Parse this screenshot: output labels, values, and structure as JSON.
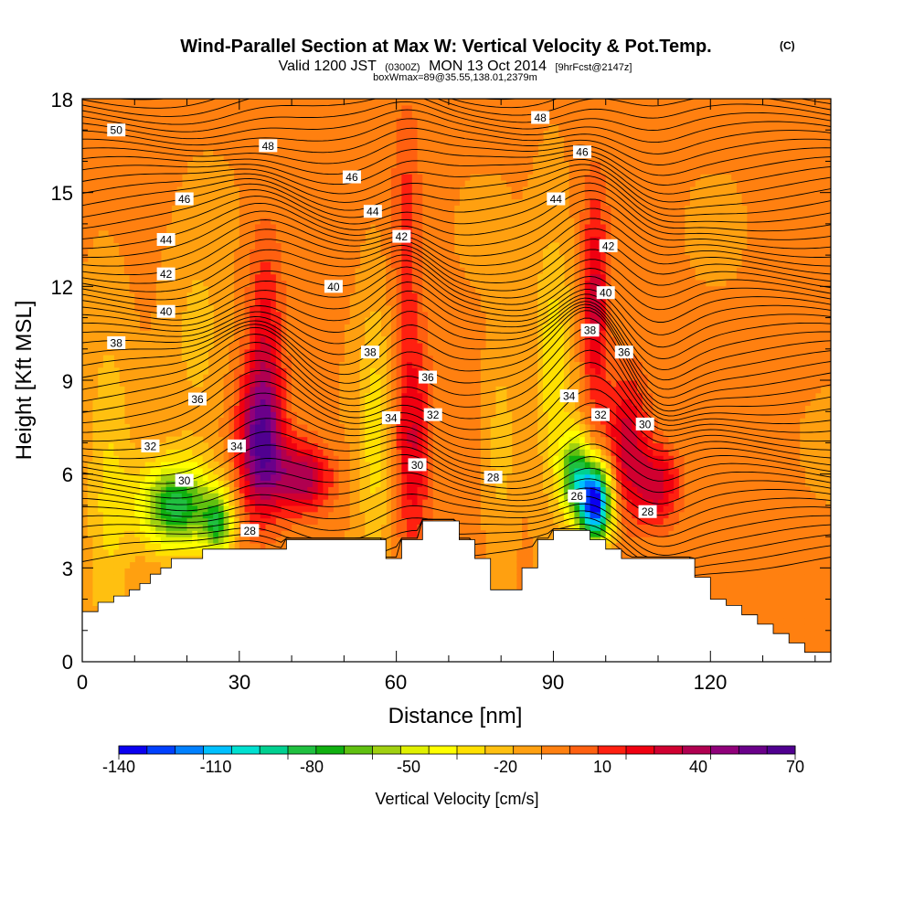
{
  "chart_data": {
    "type": "heatmap",
    "title": "Wind-Parallel Section at Max W: Vertical Velocity & Pot.Temp.",
    "title_tag": "(C)",
    "subtitle_main": "Valid 1200 JST",
    "subtitle_zulu": "(0300Z)",
    "subtitle_date": "MON 13 Oct 2014",
    "subtitle_forecast": "[9hrFcst@2147z]",
    "subtitle_line2": "boxWmax=89@35.55,138.01,2379m",
    "xlabel": "Distance [nm]",
    "ylabel": "Height [Kft MSL]",
    "xlim": [
      0,
      143
    ],
    "ylim": [
      0,
      18
    ],
    "x_ticks": [
      "0",
      "30",
      "60",
      "90",
      "120"
    ],
    "y_ticks": [
      "0",
      "3",
      "6",
      "9",
      "12",
      "15",
      "18"
    ],
    "colorbar": {
      "title": "Vertical Velocity [cm/s]",
      "tick_labels": [
        "-140",
        "-110",
        "-80",
        "-50",
        "-20",
        "10",
        "40",
        "70"
      ],
      "colors": [
        "#0a00f0",
        "#0040ff",
        "#0080ff",
        "#00c0ff",
        "#00e0d0",
        "#00d090",
        "#20c040",
        "#10b010",
        "#60c010",
        "#a0d010",
        "#e0f000",
        "#ffff00",
        "#ffe000",
        "#ffc010",
        "#ffa010",
        "#ff8010",
        "#ff6010",
        "#ff2010",
        "#f00010",
        "#d00030",
        "#b00050",
        "#90007a",
        "#6a008a",
        "#500090"
      ]
    },
    "terrain_kft": [
      [
        0,
        1.6
      ],
      [
        3,
        1.6
      ],
      [
        3,
        1.9
      ],
      [
        6,
        1.9
      ],
      [
        6,
        2.1
      ],
      [
        9,
        2.1
      ],
      [
        9,
        2.3
      ],
      [
        11,
        2.3
      ],
      [
        11,
        2.5
      ],
      [
        13,
        2.5
      ],
      [
        13,
        2.8
      ],
      [
        15,
        2.8
      ],
      [
        15,
        3.0
      ],
      [
        17,
        3.0
      ],
      [
        17,
        3.3
      ],
      [
        23,
        3.3
      ],
      [
        23,
        3.6
      ],
      [
        39,
        3.6
      ],
      [
        39,
        3.9
      ],
      [
        58,
        3.9
      ],
      [
        58,
        3.3
      ],
      [
        61,
        3.3
      ],
      [
        61,
        3.9
      ],
      [
        65,
        3.9
      ],
      [
        65,
        4.5
      ],
      [
        72,
        4.5
      ],
      [
        72,
        3.9
      ],
      [
        75,
        3.9
      ],
      [
        75,
        3.3
      ],
      [
        78,
        3.3
      ],
      [
        78,
        2.3
      ],
      [
        84,
        2.3
      ],
      [
        84,
        3.0
      ],
      [
        87,
        3.0
      ],
      [
        87,
        3.9
      ],
      [
        90,
        3.9
      ],
      [
        90,
        4.2
      ],
      [
        97,
        4.2
      ],
      [
        97,
        3.9
      ],
      [
        100,
        3.9
      ],
      [
        100,
        3.6
      ],
      [
        103,
        3.6
      ],
      [
        103,
        3.3
      ],
      [
        117,
        3.3
      ],
      [
        117,
        2.7
      ],
      [
        120,
        2.7
      ],
      [
        120,
        2.0
      ],
      [
        123,
        2.0
      ],
      [
        123,
        1.8
      ],
      [
        126,
        1.8
      ],
      [
        126,
        1.5
      ],
      [
        129,
        1.5
      ],
      [
        129,
        1.2
      ],
      [
        132,
        1.2
      ],
      [
        132,
        0.9
      ],
      [
        135,
        0.9
      ],
      [
        135,
        0.6
      ],
      [
        138,
        0.6
      ],
      [
        138,
        0.3
      ],
      [
        143,
        0.3
      ]
    ],
    "vertical_velocity_features": [
      {
        "x": 34,
        "z": 7.0,
        "sx": 3.0,
        "sz": 1.6,
        "value": 70
      },
      {
        "x": 35,
        "z": 10.5,
        "sx": 2.5,
        "sz": 2.5,
        "value": 32
      },
      {
        "x": 42,
        "z": 5.9,
        "sx": 4.0,
        "sz": 0.8,
        "value": 55
      },
      {
        "x": 63,
        "z": 7.0,
        "sx": 2.5,
        "sz": 2.5,
        "value": 40
      },
      {
        "x": 62,
        "z": 14.0,
        "sx": 2.0,
        "sz": 3.0,
        "value": 22
      },
      {
        "x": 98,
        "z": 11.5,
        "sx": 1.8,
        "sz": 2.5,
        "value": 42
      },
      {
        "x": 104,
        "z": 7.0,
        "sx": 3.0,
        "sz": 1.6,
        "value": 45
      },
      {
        "x": 110,
        "z": 5.6,
        "sx": 3.0,
        "sz": 0.9,
        "value": 42
      },
      {
        "x": 18,
        "z": 5.0,
        "sx": 5.0,
        "sz": 1.0,
        "value": -85
      },
      {
        "x": 26,
        "z": 4.4,
        "sx": 2.0,
        "sz": 0.7,
        "value": -65
      },
      {
        "x": 98,
        "z": 5.1,
        "sx": 2.2,
        "sz": 0.9,
        "value": -150
      },
      {
        "x": 94,
        "z": 6.0,
        "sx": 2.0,
        "sz": 0.9,
        "value": -75
      },
      {
        "x": 90,
        "z": 9.5,
        "sx": 2.5,
        "sz": 3.0,
        "value": -28
      },
      {
        "x": 56,
        "z": 7.5,
        "sx": 2.5,
        "sz": 3.0,
        "value": -26
      },
      {
        "x": 5,
        "z": 5.0,
        "sx": 3.0,
        "sz": 4.0,
        "value": -22
      },
      {
        "x": 22,
        "z": 10.5,
        "sx": 4.0,
        "sz": 2.5,
        "value": -14
      },
      {
        "x": 80,
        "z": 7.0,
        "sx": 2.0,
        "sz": 2.0,
        "value": -18
      }
    ],
    "potential_temperature_labels": [
      {
        "text": "50",
        "x": 6.5,
        "z": 17.0
      },
      {
        "text": "48",
        "x": 35.5,
        "z": 16.5
      },
      {
        "text": "48",
        "x": 87.5,
        "z": 17.4
      },
      {
        "text": "46",
        "x": 19.5,
        "z": 14.8
      },
      {
        "text": "46",
        "x": 51.5,
        "z": 15.5
      },
      {
        "text": "46",
        "x": 95.5,
        "z": 16.3
      },
      {
        "text": "44",
        "x": 16.0,
        "z": 13.5
      },
      {
        "text": "44",
        "x": 55.5,
        "z": 14.4
      },
      {
        "text": "44",
        "x": 90.5,
        "z": 14.8
      },
      {
        "text": "42",
        "x": 16.0,
        "z": 12.4
      },
      {
        "text": "42",
        "x": 61.0,
        "z": 13.6
      },
      {
        "text": "42",
        "x": 100.5,
        "z": 13.3
      },
      {
        "text": "40",
        "x": 16.0,
        "z": 11.2
      },
      {
        "text": "40",
        "x": 48.0,
        "z": 12.0
      },
      {
        "text": "40",
        "x": 100.0,
        "z": 11.8
      },
      {
        "text": "38",
        "x": 6.5,
        "z": 10.2
      },
      {
        "text": "38",
        "x": 55.0,
        "z": 9.9
      },
      {
        "text": "38",
        "x": 97.0,
        "z": 10.6
      },
      {
        "text": "36",
        "x": 22.0,
        "z": 8.4
      },
      {
        "text": "36",
        "x": 66.0,
        "z": 9.1
      },
      {
        "text": "36",
        "x": 103.5,
        "z": 9.9
      },
      {
        "text": "34",
        "x": 29.5,
        "z": 6.9
      },
      {
        "text": "34",
        "x": 59.0,
        "z": 7.8
      },
      {
        "text": "34",
        "x": 93.0,
        "z": 8.5
      },
      {
        "text": "32",
        "x": 13.0,
        "z": 6.9
      },
      {
        "text": "32",
        "x": 67.0,
        "z": 7.9
      },
      {
        "text": "32",
        "x": 99.0,
        "z": 7.9
      },
      {
        "text": "30",
        "x": 19.5,
        "z": 5.8
      },
      {
        "text": "30",
        "x": 64.0,
        "z": 6.3
      },
      {
        "text": "30",
        "x": 107.5,
        "z": 7.6
      },
      {
        "text": "28",
        "x": 32.0,
        "z": 4.2
      },
      {
        "text": "28",
        "x": 78.5,
        "z": 5.9
      },
      {
        "text": "28",
        "x": 108.0,
        "z": 4.8
      },
      {
        "text": "26",
        "x": 94.5,
        "z": 5.3
      }
    ]
  }
}
